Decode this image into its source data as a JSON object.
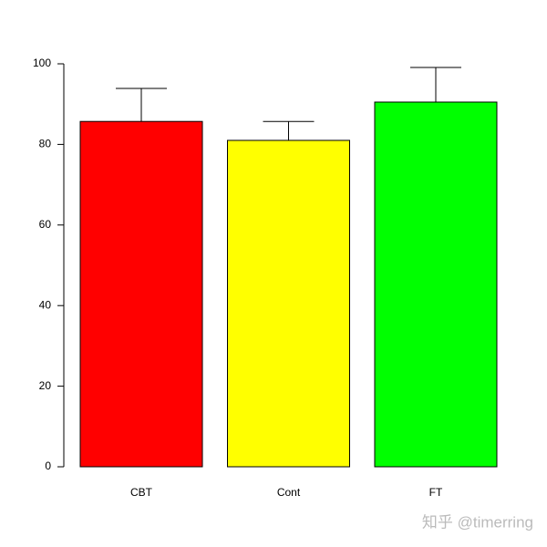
{
  "chart_data": {
    "type": "bar",
    "categories": [
      "CBT",
      "Cont",
      "FT"
    ],
    "values": [
      85.7,
      81.0,
      90.5
    ],
    "errors": [
      8.2,
      4.7,
      8.6
    ],
    "colors": [
      "#ff0000",
      "#ffff00",
      "#00ff00"
    ],
    "ylim": [
      0,
      100
    ],
    "yticks": [
      0,
      20,
      40,
      60,
      80,
      100
    ]
  },
  "watermark": "知乎 @timerring"
}
